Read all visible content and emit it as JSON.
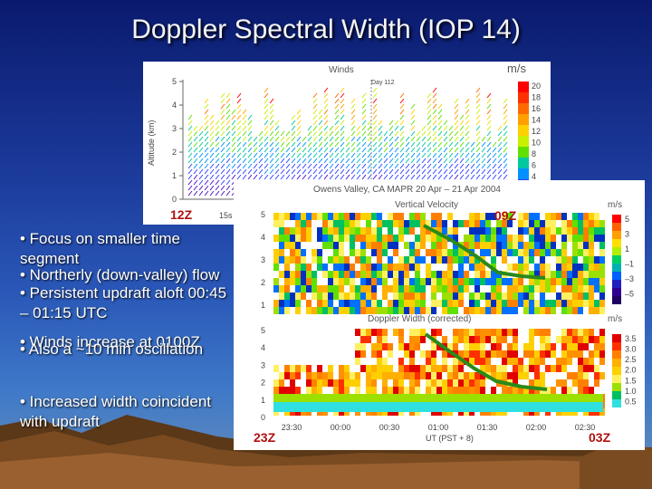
{
  "title": "Doppler Spectral Width (IOP 14)",
  "winds_panel": {
    "title": "Winds",
    "units": "m/s",
    "day_label": "Day 112",
    "yaxis_label": "Altitude (km)",
    "yticks": [
      "5",
      "4",
      "3",
      "2",
      "1",
      "0"
    ],
    "cbar_ticks": [
      "20",
      "18",
      "16",
      "14",
      "12",
      "10",
      "8",
      "6",
      "4"
    ],
    "start_label": "12Z",
    "start_sub": "15s"
  },
  "mapr_panel": {
    "header": "Owens Valley, CA  MAPR 20 Apr – 21 Apr 2004",
    "vv_title": "Vertical Velocity",
    "dw_title": "Doppler Width (corrected)",
    "units": "m/s",
    "vv_yticks": [
      "5",
      "4",
      "3",
      "2",
      "1"
    ],
    "dw_yticks": [
      "5",
      "4",
      "3",
      "2",
      "1",
      "0"
    ],
    "vv_cbar_ticks": [
      "5",
      "3",
      "1",
      "–1",
      "–3",
      "–5"
    ],
    "dw_cbar_ticks": [
      "3.5",
      "3.0",
      "2.5",
      "2.0",
      "1.5",
      "1.0",
      "0.5"
    ],
    "xticks": [
      "23:30",
      "00:00",
      "00:30",
      "01:00",
      "01:30",
      "02:00",
      "02:30"
    ],
    "xaxis_label": "UT   (PST + 8)",
    "label_09z": "09Z",
    "label_23z": "23Z",
    "label_03z": "03Z"
  },
  "bullets": [
    "• Focus on smaller time segment",
    "• Northerly (down-valley) flow",
    "• Persistent updraft aloft 00:45 – 01:15 UTC",
    "• Winds increase at 0100Z",
    "• Also a ~10 min oscillation",
    "• Increased width coincident with updraft"
  ],
  "colors": {
    "background_top": "#0a1a6e",
    "title_text": "#f4f4f4",
    "trend_line": "#2a8a1a",
    "label_red": "#b01010"
  }
}
